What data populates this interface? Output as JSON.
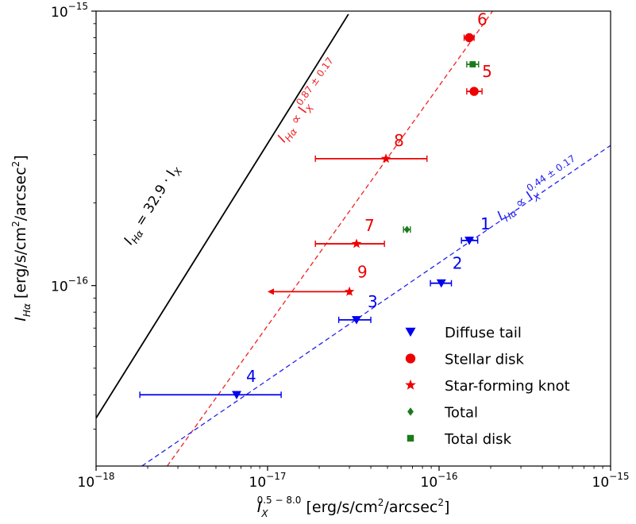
{
  "chart_data": {
    "type": "scatter",
    "xscale": "log",
    "yscale": "log",
    "xlim": [
      1e-18,
      1e-15
    ],
    "ylim": [
      2.2e-17,
      1e-15
    ],
    "xlabel": {
      "base": "I",
      "sub": "X",
      "sup": "0.5 − 8.0",
      "units": " [erg/s/cm",
      "units_sup": "2",
      "units_end": "/arcsec",
      "units_sup2": "2",
      "units_close": "]"
    },
    "ylabel": {
      "base": "I",
      "sub": "Hα",
      "units": " [erg/s/cm",
      "units_sup": "2",
      "units_end": "/arcsec",
      "units_sup2": "2",
      "units_close": "]"
    },
    "xticks": [
      {
        "value": 1e-18,
        "base": "10",
        "exp": "−18"
      },
      {
        "value": 1e-17,
        "base": "10",
        "exp": "−17"
      },
      {
        "value": 1e-16,
        "base": "10",
        "exp": "−16"
      },
      {
        "value": 1e-15,
        "base": "10",
        "exp": "−15"
      }
    ],
    "yticks": [
      {
        "value": 1e-16,
        "base": "10",
        "exp": "−16"
      },
      {
        "value": 1e-15,
        "base": "10",
        "exp": "−15"
      }
    ],
    "legend": {
      "placement": "lower-right",
      "entries": [
        {
          "label": "Diffuse tail",
          "marker": "triangle-down",
          "color": "#0000ee"
        },
        {
          "label": "Stellar disk",
          "marker": "circle",
          "color": "#ee0000"
        },
        {
          "label": "Star-forming knot",
          "marker": "star",
          "color": "#ee0000"
        },
        {
          "label": "Total",
          "marker": "diamond",
          "color": "#1a7a1a"
        },
        {
          "label": "Total disk",
          "marker": "square",
          "color": "#1a7a1a"
        }
      ]
    },
    "series": [
      {
        "group": "Diffuse tail",
        "marker": "triangle-down",
        "color": "#0000ee",
        "points": [
          {
            "label": "1",
            "x": 1.5e-16,
            "y": 1.46e-16,
            "xerr": [
              1.35e-16,
              1.68e-16
            ],
            "label_dx": 14,
            "label_dy": -14
          },
          {
            "label": "2",
            "x": 1.03e-16,
            "y": 1.02e-16,
            "xerr": [
              8.9e-17,
              1.18e-16
            ],
            "label_dx": 14,
            "label_dy": -18
          },
          {
            "label": "3",
            "x": 3.3e-17,
            "y": 7.5e-17,
            "xerr": [
              2.6e-17,
              4e-17
            ],
            "label_dx": 14,
            "label_dy": -16
          },
          {
            "label": "4",
            "x": 6.6e-18,
            "y": 4e-17,
            "xerr": [
              1.8e-18,
              1.2e-17
            ],
            "label_dx": 12,
            "label_dy": -16
          }
        ]
      },
      {
        "group": "Stellar disk",
        "marker": "circle",
        "color": "#ee0000",
        "points": [
          {
            "label": "6",
            "x": 1.5e-16,
            "y": 8e-16,
            "xerr": [
              1.4e-16,
              1.6e-16
            ],
            "label_dx": 10,
            "label_dy": -16
          },
          {
            "label": "5",
            "x": 1.6e-16,
            "y": 5.1e-16,
            "xerr": [
              1.45e-16,
              1.78e-16
            ],
            "label_dx": 10,
            "label_dy": -18
          }
        ]
      },
      {
        "group": "Star-forming knot",
        "marker": "star",
        "color": "#ee0000",
        "points": [
          {
            "label": "8",
            "x": 4.9e-17,
            "y": 2.9e-16,
            "xerr": [
              1.9e-17,
              8.5e-17
            ],
            "label_dx": 10,
            "label_dy": -16
          },
          {
            "label": "7",
            "x": 3.3e-17,
            "y": 1.42e-16,
            "xerr": [
              1.9e-17,
              4.8e-17
            ],
            "label_dx": 10,
            "label_dy": -16
          },
          {
            "label": "9",
            "x": 3e-17,
            "y": 9.5e-17,
            "xerr": [
              1e-17,
              3e-17
            ],
            "upper_limit": true,
            "label_dx": 10,
            "label_dy": -18
          }
        ]
      },
      {
        "group": "Total",
        "marker": "diamond",
        "color": "#1a7a1a",
        "points": [
          {
            "label": "",
            "x": 6.5e-17,
            "y": 1.6e-16,
            "xerr": [
              6.2e-17,
              6.8e-17
            ]
          }
        ]
      },
      {
        "group": "Total disk",
        "marker": "square",
        "color": "#1a7a1a",
        "points": [
          {
            "label": "",
            "x": 1.57e-16,
            "y": 6.4e-16,
            "xerr": [
              1.45e-16,
              1.7e-16
            ]
          }
        ]
      }
    ],
    "lines": [
      {
        "name": "one-to-one",
        "style": "solid",
        "color": "#000000",
        "label_main": "I",
        "label_sub": "Hα",
        "label_rest": " = 32.9 · I",
        "label_sub2": "X",
        "points": [
          [
            1e-18,
            3.29e-17
          ],
          [
            2.96e-17,
            9.74e-16
          ]
        ],
        "label_x": 1.6e-18,
        "label_y": 1.4e-16
      },
      {
        "name": "red-fit",
        "style": "dashed",
        "color": "#ee2222",
        "label_main": "I",
        "label_sub": "Hα",
        "label_rest": " ∝ I",
        "label_sub2": "X",
        "label_sup2": "0.87 ± 0.17",
        "points": [
          [
            2.6e-18,
            2.2e-17
          ],
          [
            2.05e-16,
            1e-15
          ]
        ],
        "label_x": 1.25e-17,
        "label_y": 3.3e-16
      },
      {
        "name": "blue-fit",
        "style": "dashed",
        "color": "#2222ee",
        "label_main": "I",
        "label_sub": "Hα",
        "label_rest": " ∝ I",
        "label_sub2": "X",
        "label_sup2": "0.44 ± 0.17",
        "points": [
          [
            1.85e-18,
            2.2e-17
          ],
          [
            1e-15,
            3.24e-16
          ]
        ],
        "label_x": 2.3e-16,
        "label_y": 1.72e-16
      }
    ]
  }
}
